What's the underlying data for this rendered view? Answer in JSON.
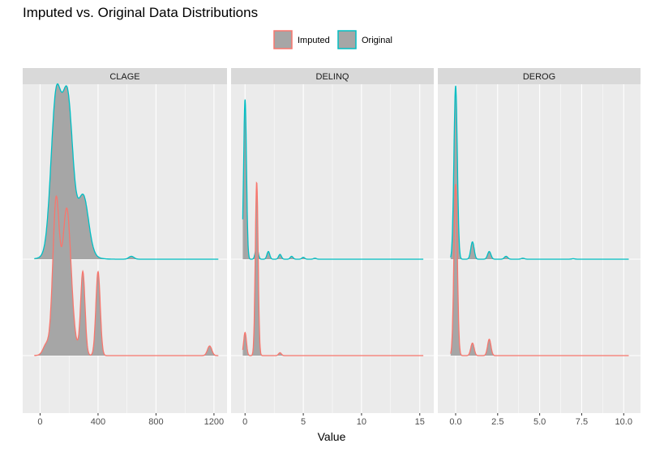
{
  "chart_data": {
    "type": "area",
    "subtype": "ridgeline-density",
    "title": "Imputed vs. Original Data Distributions",
    "xlabel": "Value",
    "ylabel": "",
    "legend": {
      "position": "top",
      "entries": [
        {
          "name": "Imputed",
          "color": "#F8766D"
        },
        {
          "name": "Original",
          "color": "#00BFC4"
        }
      ]
    },
    "fill_color": "#A6A6A6",
    "grid": true,
    "series_order": [
      "Imputed",
      "Original"
    ],
    "panels": [
      {
        "name": "CLAGE",
        "xlim": [
          -120,
          1290
        ],
        "ticks": [
          0,
          400,
          800,
          1200
        ],
        "tick_labels": [
          "0",
          "400",
          "800",
          "1200"
        ],
        "ranges": {
          "Imputed": [
            -40,
            1230
          ],
          "Original": [
            -40,
            1230
          ]
        },
        "densities": {
          "Original": [
            [
              110,
              35,
              1.55
            ],
            [
              190,
              35,
              1.45
            ],
            [
              200,
              90,
              0.2
            ],
            [
              300,
              35,
              0.55
            ],
            [
              630,
              18,
              0.03
            ]
          ],
          "Imputed": [
            [
              110,
              22,
              1.4
            ],
            [
              185,
              28,
              1.25
            ],
            [
              160,
              60,
              0.3
            ],
            [
              295,
              15,
              0.85
            ],
            [
              400,
              15,
              0.87
            ],
            [
              1170,
              15,
              0.1
            ],
            [
              40,
              20,
              0.08
            ]
          ]
        }
      },
      {
        "name": "DELINQ",
        "xlim": [
          -1.2,
          16.2
        ],
        "ticks": [
          0,
          5,
          10,
          15
        ],
        "tick_labels": [
          "0",
          "5",
          "10",
          "15"
        ],
        "ranges": {
          "Imputed": [
            -0.2,
            15.3
          ],
          "Original": [
            -0.2,
            15.3
          ]
        },
        "densities": {
          "Original": [
            [
              0,
              0.12,
              1.66
            ],
            [
              1,
              0.12,
              0.13
            ],
            [
              2,
              0.12,
              0.08
            ],
            [
              3,
              0.12,
              0.05
            ],
            [
              4,
              0.12,
              0.03
            ],
            [
              5,
              0.12,
              0.02
            ],
            [
              6,
              0.12,
              0.01
            ]
          ],
          "Imputed": [
            [
              0,
              0.12,
              0.24
            ],
            [
              1,
              0.12,
              1.8
            ],
            [
              3,
              0.12,
              0.03
            ]
          ]
        }
      },
      {
        "name": "DEROG",
        "xlim": [
          -1.06,
          11.0
        ],
        "ticks": [
          0,
          2.5,
          5,
          7.5,
          10
        ],
        "tick_labels": [
          "0.0",
          "2.5",
          "5.0",
          "7.5",
          "10.0"
        ],
        "ranges": {
          "Imputed": [
            -0.3,
            10.3
          ],
          "Original": [
            -0.3,
            10.3
          ]
        },
        "densities": {
          "Original": [
            [
              0,
              0.1,
              1.8
            ],
            [
              1,
              0.1,
              0.18
            ],
            [
              2,
              0.1,
              0.08
            ],
            [
              3,
              0.1,
              0.03
            ],
            [
              4,
              0.1,
              0.01
            ],
            [
              7,
              0.1,
              0.005
            ]
          ],
          "Imputed": [
            [
              0,
              0.1,
              1.78
            ],
            [
              1,
              0.1,
              0.13
            ],
            [
              2,
              0.1,
              0.17
            ]
          ]
        }
      }
    ]
  }
}
